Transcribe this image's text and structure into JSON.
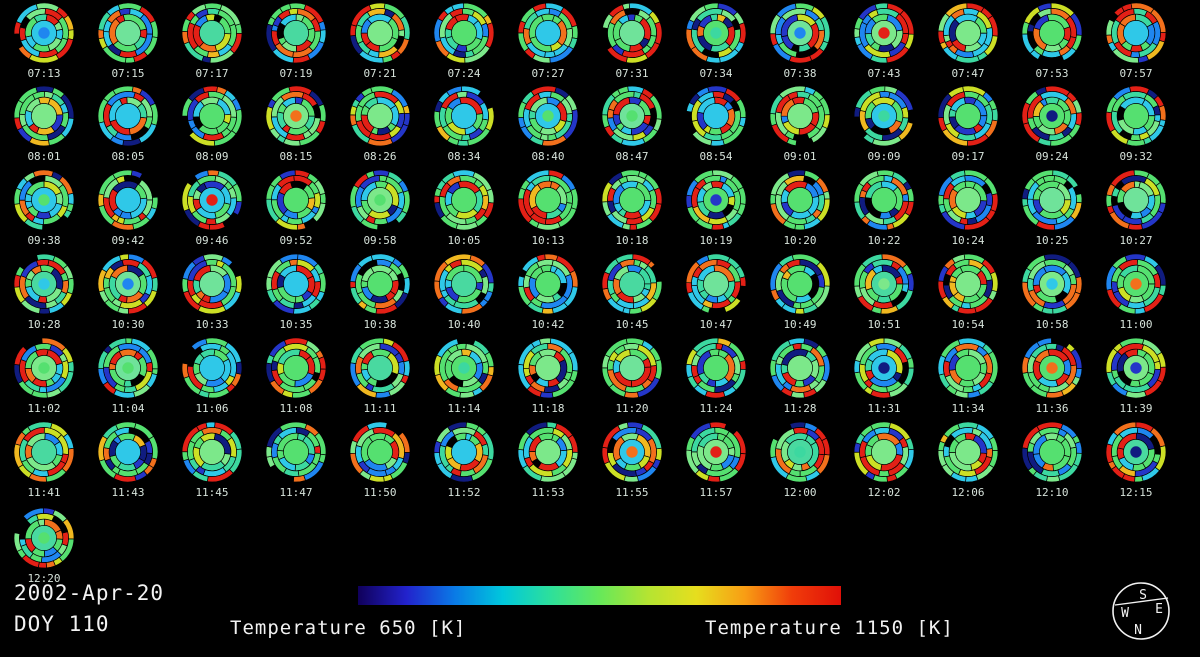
{
  "figure": {
    "date": "2002-Apr-20",
    "doy": "DOY 110",
    "colorbar": {
      "label_left": "Temperature 650 [K]",
      "label_right": "Temperature 1150 [K]",
      "min": 650,
      "max": 1150,
      "units": "K",
      "gradient": [
        "#10005a",
        "#2222cc",
        "#0a7ae6",
        "#00c8dc",
        "#2ee09a",
        "#66e85a",
        "#b4e432",
        "#e6de1e",
        "#f89e14",
        "#f03c0a",
        "#e01008"
      ]
    },
    "compass": {
      "top": "S",
      "bottom": "N",
      "left": "W",
      "right": "E"
    }
  },
  "rows": [
    {
      "times": [
        "07:13",
        "07:15",
        "07:17",
        "07:19",
        "07:21",
        "07:24",
        "07:27",
        "07:31",
        "07:34",
        "07:38",
        "07:43",
        "07:47",
        "07:53",
        "07:57"
      ]
    },
    {
      "times": [
        "08:01",
        "08:05",
        "08:09",
        "08:15",
        "08:26",
        "08:34",
        "08:40",
        "08:47",
        "08:54",
        "09:01",
        "09:09",
        "09:17",
        "09:24",
        "09:32"
      ]
    },
    {
      "times": [
        "09:38",
        "09:42",
        "09:46",
        "09:52",
        "09:58",
        "10:05",
        "10:13",
        "10:18",
        "10:19",
        "10:20",
        "10:22",
        "10:24",
        "10:25",
        "10:27"
      ]
    },
    {
      "times": [
        "10:28",
        "10:30",
        "10:33",
        "10:35",
        "10:38",
        "10:40",
        "10:42",
        "10:45",
        "10:47",
        "10:49",
        "10:51",
        "10:54",
        "10:58",
        "11:00"
      ]
    },
    {
      "times": [
        "11:02",
        "11:04",
        "11:06",
        "11:08",
        "11:11",
        "11:14",
        "11:18",
        "11:20",
        "11:24",
        "11:28",
        "11:31",
        "11:34",
        "11:36",
        "11:39"
      ]
    },
    {
      "times": [
        "11:41",
        "11:43",
        "11:45",
        "11:47",
        "11:50",
        "11:52",
        "11:53",
        "11:55",
        "11:57",
        "12:00",
        "12:02",
        "12:06",
        "12:10",
        "12:15"
      ]
    },
    {
      "times": [
        "12:20"
      ]
    }
  ],
  "disk_style": {
    "palette": [
      {
        "c": "#55e070",
        "w": 22
      },
      {
        "c": "#7ce88a",
        "w": 10
      },
      {
        "c": "#3cd8a0",
        "w": 8
      },
      {
        "c": "#2fc8e8",
        "w": 10
      },
      {
        "c": "#1f86f0",
        "w": 6
      },
      {
        "c": "#2436c8",
        "w": 6
      },
      {
        "c": "#101c80",
        "w": 5
      },
      {
        "c": "#e32016",
        "w": 14
      },
      {
        "c": "#f2701c",
        "w": 7
      },
      {
        "c": "#ccdf25",
        "w": 6
      },
      {
        "c": "#f0b820",
        "w": 3
      },
      {
        "c": "#000000",
        "w": 3
      }
    ],
    "centers": [
      "#55e070",
      "#6fe39a",
      "#49d9a0",
      "#2fc8e8",
      "#7ce88a",
      "#55e070"
    ]
  },
  "chart_data": {
    "type": "heatmap",
    "title": "2002-Apr-20 DOY 110",
    "colorbar": {
      "label": "Temperature",
      "min": 650,
      "max": 1150,
      "units": "K",
      "position": "bottom"
    },
    "grid": {
      "rows": 7,
      "columns": 14,
      "frame_count": 85
    },
    "orientation": {
      "top": "S",
      "bottom": "N",
      "left": "W",
      "right": "E"
    },
    "frames": [
      "07:13",
      "07:15",
      "07:17",
      "07:19",
      "07:21",
      "07:24",
      "07:27",
      "07:31",
      "07:34",
      "07:38",
      "07:43",
      "07:47",
      "07:53",
      "07:57",
      "08:01",
      "08:05",
      "08:09",
      "08:15",
      "08:26",
      "08:34",
      "08:40",
      "08:47",
      "08:54",
      "09:01",
      "09:09",
      "09:17",
      "09:24",
      "09:32",
      "09:38",
      "09:42",
      "09:46",
      "09:52",
      "09:58",
      "10:05",
      "10:13",
      "10:18",
      "10:19",
      "10:20",
      "10:22",
      "10:24",
      "10:25",
      "10:27",
      "10:28",
      "10:30",
      "10:33",
      "10:35",
      "10:38",
      "10:40",
      "10:42",
      "10:45",
      "10:47",
      "10:49",
      "10:51",
      "10:54",
      "10:58",
      "11:00",
      "11:02",
      "11:04",
      "11:06",
      "11:08",
      "11:11",
      "11:14",
      "11:18",
      "11:20",
      "11:24",
      "11:28",
      "11:31",
      "11:34",
      "11:36",
      "11:39",
      "11:41",
      "11:43",
      "11:45",
      "11:47",
      "11:50",
      "11:52",
      "11:53",
      "11:55",
      "11:57",
      "12:00",
      "12:02",
      "12:06",
      "12:10",
      "12:15",
      "12:20"
    ]
  }
}
